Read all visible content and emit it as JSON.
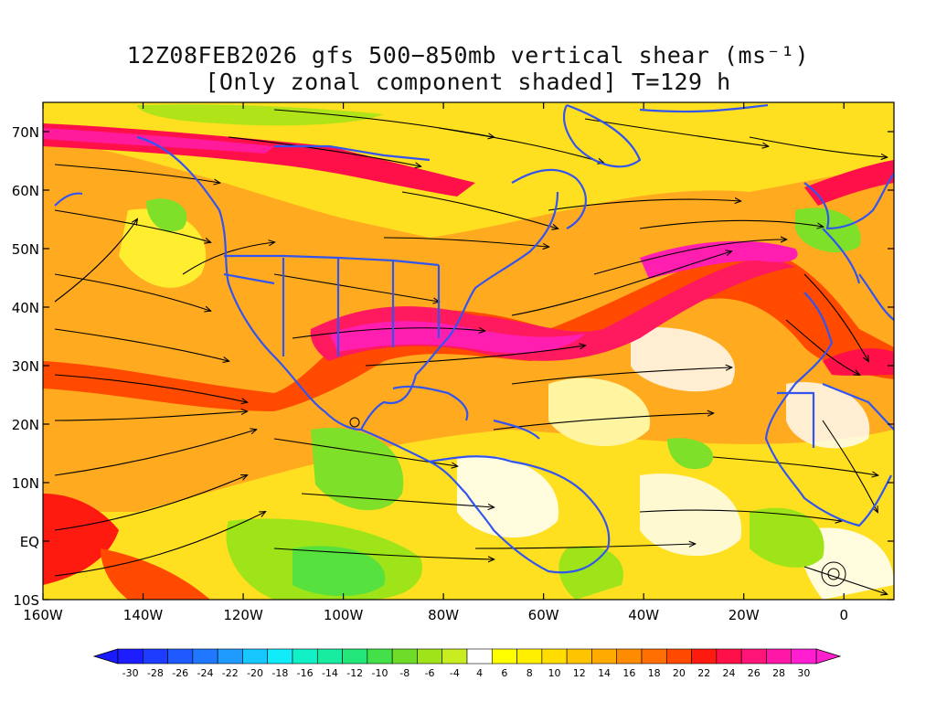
{
  "title": {
    "line1": "12Z08FEB2026 gfs 500−850mb vertical shear (ms⁻¹)",
    "line2": "[Only zonal component shaded] T=129 h"
  },
  "map": {
    "lon_range": [
      -160,
      10
    ],
    "lat_range": [
      -10,
      75
    ],
    "lat_ticks": [
      {
        "value": 70,
        "label": "70N"
      },
      {
        "value": 60,
        "label": "60N"
      },
      {
        "value": 50,
        "label": "50N"
      },
      {
        "value": 40,
        "label": "40N"
      },
      {
        "value": 30,
        "label": "30N"
      },
      {
        "value": 20,
        "label": "20N"
      },
      {
        "value": 10,
        "label": "10N"
      },
      {
        "value": 0,
        "label": "EQ"
      },
      {
        "value": -10,
        "label": "10S"
      }
    ],
    "lon_ticks": [
      {
        "value": -160,
        "label": "160W"
      },
      {
        "value": -140,
        "label": "140W"
      },
      {
        "value": -120,
        "label": "120W"
      },
      {
        "value": -100,
        "label": "100W"
      },
      {
        "value": -80,
        "label": "80W"
      },
      {
        "value": -60,
        "label": "60W"
      },
      {
        "value": -40,
        "label": "40W"
      },
      {
        "value": -20,
        "label": "20W"
      },
      {
        "value": 0,
        "label": "0"
      }
    ],
    "coastline_color": "#3355ee",
    "streamline_color": "#000000"
  },
  "colorbar": {
    "labels": [
      "-30",
      "-28",
      "-26",
      "-24",
      "-22",
      "-20",
      "-18",
      "-16",
      "-14",
      "-12",
      "-10",
      "-8",
      "-6",
      "-4",
      "4",
      "6",
      "8",
      "10",
      "12",
      "14",
      "16",
      "18",
      "20",
      "22",
      "24",
      "26",
      "28",
      "30"
    ],
    "low_end_color": "#1a1aff",
    "high_end_color": "#ff22cc",
    "colors": [
      "#1d1dff",
      "#1e3cff",
      "#1f5aff",
      "#1f78ff",
      "#1f9bff",
      "#17c8ff",
      "#11ecfa",
      "#12f0c8",
      "#18eca0",
      "#22e67a",
      "#44e04a",
      "#6edc28",
      "#9ee418",
      "#c8ee22",
      "#ffffff",
      "#ffff00",
      "#fff000",
      "#ffdd00",
      "#ffc400",
      "#ffaa00",
      "#ff8c00",
      "#ff6e00",
      "#ff4a00",
      "#ff1a10",
      "#ff1048",
      "#ff1478",
      "#ff18a8",
      "#ff1ed0"
    ]
  }
}
